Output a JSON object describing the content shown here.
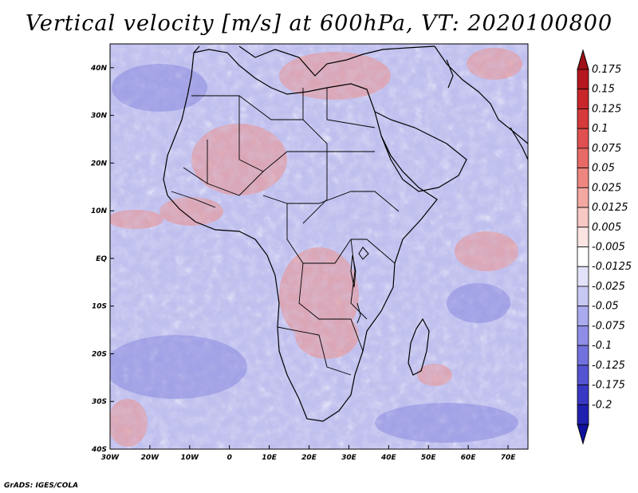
{
  "title": "Vertical velocity [m/s] at 600hPa, VT: 2020100800",
  "credit": "GrADS: IGES/COLA",
  "map": {
    "lon_range": [
      -30,
      75
    ],
    "lat_range": [
      -40,
      45
    ],
    "lat_ticks": [
      {
        "value": 40,
        "label": "40N"
      },
      {
        "value": 30,
        "label": "30N"
      },
      {
        "value": 20,
        "label": "20N"
      },
      {
        "value": 10,
        "label": "10N"
      },
      {
        "value": 0,
        "label": "EQ"
      },
      {
        "value": -10,
        "label": "10S"
      },
      {
        "value": -20,
        "label": "20S"
      },
      {
        "value": -30,
        "label": "30S"
      },
      {
        "value": -40,
        "label": "40S"
      }
    ],
    "lon_ticks": [
      {
        "value": -30,
        "label": "30W"
      },
      {
        "value": -20,
        "label": "20W"
      },
      {
        "value": -10,
        "label": "10W"
      },
      {
        "value": 0,
        "label": "0"
      },
      {
        "value": 10,
        "label": "10E"
      },
      {
        "value": 20,
        "label": "20E"
      },
      {
        "value": 30,
        "label": "30E"
      },
      {
        "value": 40,
        "label": "40E"
      },
      {
        "value": 50,
        "label": "50E"
      },
      {
        "value": 60,
        "label": "60E"
      },
      {
        "value": 70,
        "label": "70E"
      }
    ]
  },
  "colorbar": {
    "levels": [
      {
        "label": "0.175",
        "color": "#b4181e"
      },
      {
        "label": "0.15",
        "color": "#c8262a"
      },
      {
        "label": "0.125",
        "color": "#d63a3a"
      },
      {
        "label": "0.1",
        "color": "#e05050"
      },
      {
        "label": "0.075",
        "color": "#e86a66"
      },
      {
        "label": "0.05",
        "color": "#ee8680"
      },
      {
        "label": "0.025",
        "color": "#f4a8a2"
      },
      {
        "label": "0.0125",
        "color": "#f8c8c4"
      },
      {
        "label": "0.005",
        "color": "#fce4e2"
      },
      {
        "label": "-0.005",
        "color": "#ffffff"
      },
      {
        "label": "-0.0125",
        "color": "#e2e2fa"
      },
      {
        "label": "-0.025",
        "color": "#c8c8f4"
      },
      {
        "label": "-0.05",
        "color": "#aaaaee"
      },
      {
        "label": "-0.075",
        "color": "#8e8ee6"
      },
      {
        "label": "-0.1",
        "color": "#7272de"
      },
      {
        "label": "-0.125",
        "color": "#5454d2"
      },
      {
        "label": "-0.175",
        "color": "#3838c4"
      },
      {
        "label": "-0.2",
        "color": "#2020b0"
      }
    ],
    "top_color": "#a01018",
    "bottom_color": "#1010a0"
  }
}
